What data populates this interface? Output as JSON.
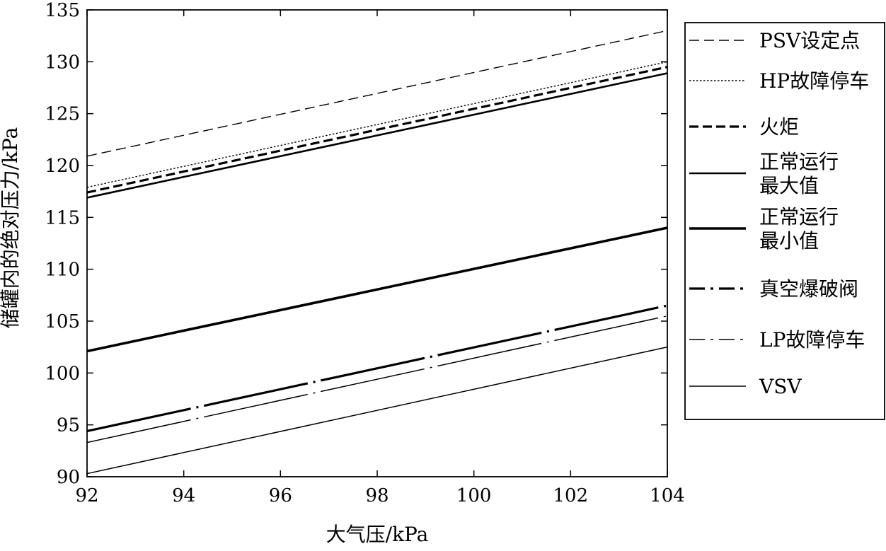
{
  "chart_data": {
    "type": "line",
    "xlabel": "大气压/kPa",
    "ylabel": "储罐内的绝对压力/kPa",
    "xlim": [
      92,
      104
    ],
    "ylim": [
      90,
      135
    ],
    "x_ticks": [
      92,
      94,
      96,
      98,
      100,
      102,
      104
    ],
    "y_ticks": [
      90,
      95,
      100,
      105,
      110,
      115,
      120,
      125,
      130,
      135
    ],
    "x_tick_labels": [
      "92",
      "94",
      "96",
      "98",
      "100",
      "102",
      "104"
    ],
    "y_tick_labels": [
      "90",
      "95",
      "100",
      "105",
      "110",
      "115",
      "120",
      "125",
      "130",
      "135"
    ],
    "grid": false,
    "legend_position": "outside-right",
    "series": [
      {
        "name": "PSV设定点",
        "legend_lines": [
          "PSV设定点"
        ],
        "style": "dashed-thin",
        "x": [
          92,
          104
        ],
        "y": [
          120.9,
          133.0
        ]
      },
      {
        "name": "HP故障停车",
        "legend_lines": [
          "HP故障停车"
        ],
        "style": "dotted-thin",
        "x": [
          92,
          104
        ],
        "y": [
          117.9,
          130.0
        ]
      },
      {
        "name": "火炬",
        "legend_lines": [
          "火炬"
        ],
        "style": "dashed-bold",
        "x": [
          92,
          104
        ],
        "y": [
          117.4,
          129.5
        ]
      },
      {
        "name": "正常运行最大值",
        "legend_lines": [
          "正常运行",
          "最大值"
        ],
        "style": "solid-medium",
        "x": [
          92,
          104
        ],
        "y": [
          116.9,
          128.9
        ]
      },
      {
        "name": "正常运行最小值",
        "legend_lines": [
          "正常运行",
          "最小值"
        ],
        "style": "solid-bold",
        "x": [
          92,
          104
        ],
        "y": [
          102.1,
          114.0
        ]
      },
      {
        "name": "真空爆破阀",
        "legend_lines": [
          "真空爆破阀"
        ],
        "style": "dashdot-bold",
        "x": [
          92,
          104
        ],
        "y": [
          94.4,
          106.5
        ]
      },
      {
        "name": "LP故障停车",
        "legend_lines": [
          "LP故障停车"
        ],
        "style": "dashdot-thin",
        "x": [
          92,
          104
        ],
        "y": [
          93.3,
          105.5
        ]
      },
      {
        "name": "VSV",
        "legend_lines": [
          "VSV"
        ],
        "style": "solid-thin",
        "x": [
          92,
          104
        ],
        "y": [
          90.3,
          102.5
        ]
      }
    ]
  }
}
